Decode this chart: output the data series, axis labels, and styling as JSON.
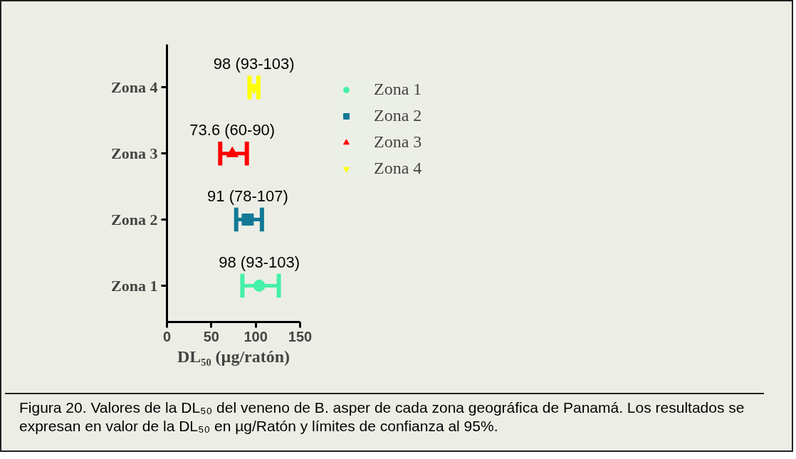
{
  "chart_data": {
    "type": "scatter",
    "orientation": "horizontal",
    "categories": [
      "Zona 4",
      "Zona 3",
      "Zona 2",
      "Zona 1"
    ],
    "xlabel": "DL₅₀ (µg/ratón)",
    "xlim": [
      0,
      150
    ],
    "xticks": [
      0,
      50,
      100,
      150
    ],
    "grid": false,
    "legend": "top right",
    "series": [
      {
        "name": "Zona 1",
        "color": "#45f0a8",
        "marker": "circle",
        "values": [
          null,
          null,
          null,
          104
        ],
        "errors": [
          null,
          null,
          null,
          [
            85,
            126
          ]
        ]
      },
      {
        "name": "Zona 2",
        "color": "#137a96",
        "marker": "square",
        "values": [
          null,
          null,
          91,
          null
        ],
        "errors": [
          null,
          null,
          [
            78,
            107
          ],
          null
        ]
      },
      {
        "name": "Zona 3",
        "color": "#ff0000",
        "marker": "triangle",
        "values": [
          null,
          73.6,
          null,
          null
        ],
        "errors": [
          null,
          [
            60,
            90
          ],
          null,
          null
        ]
      },
      {
        "name": "Zona 4",
        "color": "#ffff00",
        "values": [
          98,
          null,
          null,
          null
        ],
        "errors": [
          [
            93,
            103
          ],
          null,
          null,
          null
        ]
      }
    ],
    "annotations": [
      {
        "text": "98 (93-103)",
        "x": 98,
        "y": "Zona 4"
      },
      {
        "text": "73.6 (60-90)",
        "x": 73.6,
        "y": "Zona 3"
      },
      {
        "text": "91 (78-107)",
        "x": 91,
        "y": "Zona 2"
      },
      {
        "text": "98 (93-103)",
        "x": 104,
        "y": "Zona 1"
      },
      "Figura 20. Valores de la DL₅₀ del veneno de B. asper de cada zona geográfica de Panamá. Los resultados se expresan en valor de la DL₅₀ en µg/Ratón y límites de confianza al 95%."
    ]
  }
}
